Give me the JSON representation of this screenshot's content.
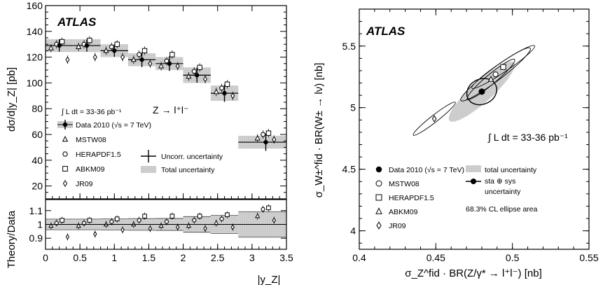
{
  "chart_data": [
    {
      "type": "scatter",
      "brand": "ATLAS",
      "process": "Z → l⁺l⁻",
      "luminosity": "∫ L dt = 33-36 pb⁻¹",
      "ylabel": "dσ/d|y_Z| [pb]",
      "ratio_ylabel": "Theory/Data",
      "xlabel": "|y_Z|",
      "xlim": [
        0,
        3.5
      ],
      "ylim": [
        10,
        160
      ],
      "ratio_ylim": [
        0.82,
        1.18
      ],
      "x_ticks": [
        0,
        0.5,
        1,
        1.5,
        2,
        2.5,
        3,
        3.5
      ],
      "y_ticks": [
        20,
        40,
        60,
        80,
        100,
        120,
        140,
        160
      ],
      "ratio_ticks": [
        0.9,
        1,
        1.1
      ],
      "bins": [
        0,
        0.4,
        0.8,
        1.2,
        1.6,
        2.0,
        2.4,
        2.8,
        3.6
      ],
      "data": {
        "name": "Data 2010 (√s = 7 TeV)",
        "x": [
          0.2,
          0.6,
          1.0,
          1.4,
          1.8,
          2.2,
          2.6,
          3.2
        ],
        "y": [
          129,
          129,
          125,
          118,
          115,
          106,
          92,
          54
        ],
        "stat_err": [
          2,
          2,
          2,
          3,
          3,
          3,
          4,
          4
        ],
        "total_err": [
          5,
          5,
          5,
          5,
          5,
          6,
          6,
          5
        ]
      },
      "series": [
        {
          "name": "MSTW08",
          "marker": "triangle",
          "y": [
            127,
            128,
            125,
            118,
            113,
            105,
            93,
            57
          ],
          "ratio": [
            0.99,
            0.99,
            1.0,
            1.0,
            0.99,
            0.99,
            1.01,
            1.06
          ]
        },
        {
          "name": "HERAPDF1.5",
          "marker": "hexagon",
          "y": [
            130,
            130,
            128,
            122,
            117,
            109,
            96,
            60
          ],
          "ratio": [
            1.01,
            1.01,
            1.02,
            1.03,
            1.02,
            1.03,
            1.04,
            1.11
          ]
        },
        {
          "name": "ABKM09",
          "marker": "square",
          "y": [
            132,
            133,
            130,
            125,
            122,
            112,
            99,
            61
          ],
          "ratio": [
            1.03,
            1.03,
            1.04,
            1.06,
            1.06,
            1.06,
            1.07,
            1.12
          ]
        },
        {
          "name": "JR09",
          "marker": "diamond",
          "y": [
            118,
            120,
            120,
            115,
            113,
            103,
            90,
            56
          ],
          "ratio": [
            0.91,
            0.93,
            0.96,
            0.97,
            0.98,
            0.97,
            0.98,
            1.03
          ]
        }
      ],
      "legend_extra": [
        "Uncorr. uncertainty",
        "Total uncertainty"
      ]
    },
    {
      "type": "scatter",
      "brand": "ATLAS",
      "luminosity": "∫ L dt = 33-36 pb⁻¹",
      "xlabel": "σ_Z^fid · BR(Z/γ* → l⁺l⁻) [nb]",
      "ylabel": "σ_W±^fid · BR(W± → lν) [nb]",
      "xlim": [
        0.4,
        0.55
      ],
      "ylim": [
        3.85,
        5.8
      ],
      "x_ticks": [
        0.4,
        0.45,
        0.5,
        0.55
      ],
      "y_ticks": [
        4,
        4.5,
        5,
        5.5
      ],
      "data": {
        "name": "Data 2010 (√s = 7 TeV)",
        "x": 0.48,
        "y": 5.13
      },
      "points": [
        {
          "name": "MSTW08",
          "marker": "circle",
          "x": 0.489,
          "y": 5.27
        },
        {
          "name": "HERAPDF1.5",
          "marker": "square",
          "x": 0.494,
          "y": 5.33
        },
        {
          "name": "ABKM09",
          "marker": "triangle",
          "x": 0.486,
          "y": 5.23
        },
        {
          "name": "JR09",
          "marker": "diamond",
          "x": 0.449,
          "y": 4.91
        }
      ],
      "legend_extra": [
        "total uncertainty",
        "sta ⊕ sys",
        "uncertainty",
        "68.3% CL ellipse area"
      ]
    }
  ]
}
